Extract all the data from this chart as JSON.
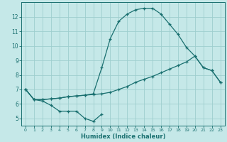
{
  "xlabel": "Humidex (Indice chaleur)",
  "background_color": "#c5e8e8",
  "grid_color": "#9ecece",
  "line_color": "#1a7070",
  "line1_x": [
    0,
    1,
    2,
    3,
    4,
    5,
    6,
    7,
    8,
    9,
    10,
    11,
    12,
    13,
    14,
    15,
    16,
    17,
    18,
    19,
    20,
    21,
    22,
    23
  ],
  "line1_y": [
    7.0,
    6.3,
    6.3,
    6.35,
    6.4,
    6.5,
    6.55,
    6.6,
    6.7,
    8.5,
    10.5,
    11.7,
    12.2,
    12.5,
    12.6,
    12.6,
    12.2,
    11.5,
    10.8,
    9.9,
    9.3,
    8.5,
    8.3,
    7.5
  ],
  "line2_x": [
    0,
    1,
    2,
    3,
    4,
    5,
    6,
    7,
    8,
    9,
    10,
    11,
    12,
    13,
    14,
    15,
    16,
    17,
    18,
    19,
    20,
    21,
    22,
    23
  ],
  "line2_y": [
    7.0,
    6.3,
    6.3,
    6.35,
    6.4,
    6.5,
    6.55,
    6.6,
    6.65,
    6.7,
    6.8,
    7.0,
    7.2,
    7.5,
    7.7,
    7.9,
    8.15,
    8.4,
    8.65,
    8.9,
    9.3,
    8.5,
    8.3,
    7.5
  ],
  "line3_x": [
    0,
    1,
    2,
    3,
    4,
    5,
    6,
    7,
    8,
    9
  ],
  "line3_y": [
    7.0,
    6.3,
    6.2,
    5.9,
    5.5,
    5.5,
    5.5,
    5.0,
    4.8,
    5.3
  ],
  "xlim": [
    -0.5,
    23.5
  ],
  "ylim": [
    4.5,
    13.0
  ],
  "yticks": [
    5,
    6,
    7,
    8,
    9,
    10,
    11,
    12
  ],
  "xticks": [
    0,
    1,
    2,
    3,
    4,
    5,
    6,
    7,
    8,
    9,
    10,
    11,
    12,
    13,
    14,
    15,
    16,
    17,
    18,
    19,
    20,
    21,
    22,
    23
  ]
}
